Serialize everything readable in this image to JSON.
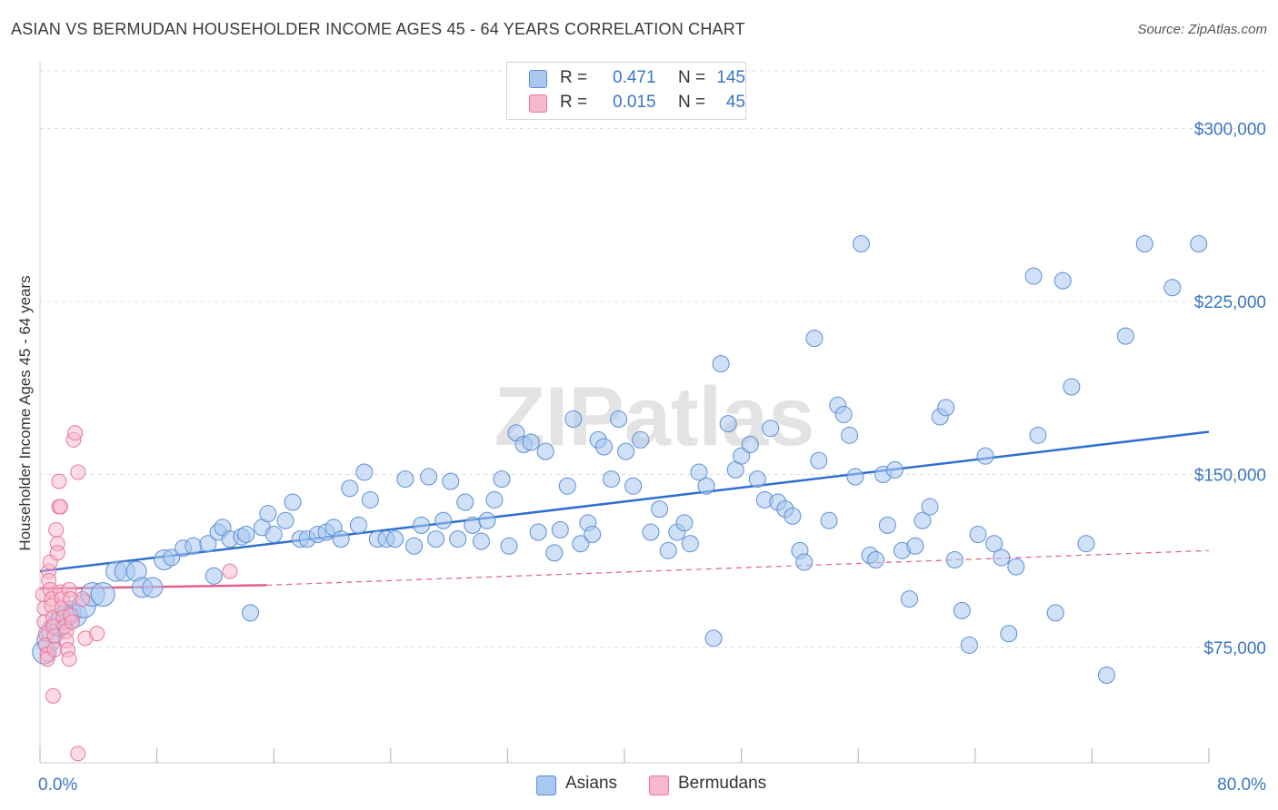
{
  "title": "ASIAN VS BERMUDAN HOUSEHOLDER INCOME AGES 45 - 64 YEARS CORRELATION CHART",
  "source": "Source: ZipAtlas.com",
  "watermark": "ZIPatlas",
  "legend": {
    "rows": [
      {
        "r_label": "R =",
        "r_value": "0.471",
        "n_label": "N =",
        "n_value": "145",
        "color": "#a9c8f0"
      },
      {
        "r_label": "R =",
        "r_value": "0.015",
        "n_label": "N =",
        "n_value": "45",
        "color": "#f7b8cc"
      }
    ]
  },
  "bottom_legend": [
    {
      "label": "Asians",
      "color": "#a9c8f0"
    },
    {
      "label": "Bermudans",
      "color": "#f7b8cc"
    }
  ],
  "colors": {
    "asians_fill": "#a9c8f0",
    "asians_stroke": "#5b8fd6",
    "asians_line": "#2f6fce",
    "bermudans_fill": "#f7b8cc",
    "bermudans_stroke": "#e8779c",
    "bermudans_line": "#e25d8b",
    "axis_text": "#3a76c4",
    "grid": "#dddddd"
  },
  "chart_data": {
    "type": "scatter",
    "title": "ASIAN VS BERMUDAN HOUSEHOLDER INCOME AGES 45 - 64 YEARS CORRELATION CHART",
    "xlabel": "",
    "ylabel": "Householder Income Ages 45 - 64 years",
    "xlim": [
      0,
      80
    ],
    "ylim": [
      25000,
      325000
    ],
    "x_tick_labels": [
      "0.0%",
      "80.0%"
    ],
    "y_ticks": [
      75000,
      150000,
      225000,
      300000
    ],
    "y_tick_labels": [
      "$75,000",
      "$150,000",
      "$225,000",
      "$300,000"
    ],
    "grid": true,
    "legend_position": "top-center",
    "series": [
      {
        "name": "Asians",
        "trend": {
          "x": [
            0,
            80
          ],
          "y": [
            108000,
            168500
          ]
        },
        "points": [
          [
            0.3,
            73000
          ],
          [
            0.6,
            78000
          ],
          [
            0.9,
            82000
          ],
          [
            1.3,
            85000
          ],
          [
            1.6,
            88000
          ],
          [
            2.0,
            90000
          ],
          [
            2.4,
            89000
          ],
          [
            3.0,
            93000
          ],
          [
            3.6,
            98000
          ],
          [
            4.3,
            98000
          ],
          [
            5.2,
            108000
          ],
          [
            5.8,
            108000
          ],
          [
            6.6,
            108000
          ],
          [
            7.0,
            101000
          ],
          [
            7.7,
            101000
          ],
          [
            8.5,
            113000
          ],
          [
            9.0,
            114000
          ],
          [
            9.8,
            118000
          ],
          [
            10.5,
            119000
          ],
          [
            11.5,
            120000
          ],
          [
            12.2,
            125000
          ],
          [
            11.9,
            106000
          ],
          [
            12.5,
            127000
          ],
          [
            13.0,
            122000
          ],
          [
            13.8,
            123000
          ],
          [
            14.1,
            124000
          ],
          [
            14.4,
            90000
          ],
          [
            15.2,
            127000
          ],
          [
            15.6,
            133000
          ],
          [
            16.0,
            124000
          ],
          [
            16.8,
            130000
          ],
          [
            17.3,
            138000
          ],
          [
            17.8,
            122000
          ],
          [
            18.3,
            122000
          ],
          [
            19.0,
            124000
          ],
          [
            19.6,
            125000
          ],
          [
            20.1,
            127000
          ],
          [
            20.6,
            122000
          ],
          [
            21.2,
            144000
          ],
          [
            21.8,
            128000
          ],
          [
            22.2,
            151000
          ],
          [
            22.6,
            139000
          ],
          [
            23.1,
            122000
          ],
          [
            23.7,
            122000
          ],
          [
            24.3,
            122000
          ],
          [
            25.0,
            148000
          ],
          [
            25.6,
            119000
          ],
          [
            26.1,
            128000
          ],
          [
            26.6,
            149000
          ],
          [
            27.1,
            122000
          ],
          [
            27.6,
            130000
          ],
          [
            28.1,
            147000
          ],
          [
            28.6,
            122000
          ],
          [
            29.1,
            138000
          ],
          [
            29.6,
            128000
          ],
          [
            30.2,
            121000
          ],
          [
            30.6,
            130000
          ],
          [
            31.1,
            139000
          ],
          [
            31.6,
            148000
          ],
          [
            32.1,
            119000
          ],
          [
            32.6,
            168000
          ],
          [
            33.1,
            163000
          ],
          [
            33.6,
            164000
          ],
          [
            34.1,
            125000
          ],
          [
            34.6,
            160000
          ],
          [
            35.2,
            116000
          ],
          [
            35.6,
            126000
          ],
          [
            36.1,
            145000
          ],
          [
            36.5,
            174000
          ],
          [
            37.0,
            120000
          ],
          [
            37.5,
            129000
          ],
          [
            37.8,
            124000
          ],
          [
            38.2,
            165000
          ],
          [
            38.6,
            162000
          ],
          [
            39.1,
            148000
          ],
          [
            39.6,
            174000
          ],
          [
            40.1,
            160000
          ],
          [
            40.6,
            145000
          ],
          [
            41.1,
            165000
          ],
          [
            41.8,
            125000
          ],
          [
            42.4,
            135000
          ],
          [
            43.0,
            117000
          ],
          [
            43.6,
            125000
          ],
          [
            44.1,
            129000
          ],
          [
            44.5,
            120000
          ],
          [
            45.1,
            151000
          ],
          [
            45.6,
            145000
          ],
          [
            46.1,
            79000
          ],
          [
            46.6,
            198000
          ],
          [
            47.1,
            172000
          ],
          [
            47.6,
            152000
          ],
          [
            48.0,
            158000
          ],
          [
            48.6,
            163000
          ],
          [
            49.1,
            148000
          ],
          [
            49.6,
            139000
          ],
          [
            50.0,
            170000
          ],
          [
            50.5,
            138000
          ],
          [
            51.0,
            135000
          ],
          [
            51.5,
            132000
          ],
          [
            52.0,
            117000
          ],
          [
            52.3,
            112000
          ],
          [
            53.0,
            209000
          ],
          [
            53.3,
            156000
          ],
          [
            54.0,
            130000
          ],
          [
            54.6,
            180000
          ],
          [
            55.0,
            176000
          ],
          [
            55.4,
            167000
          ],
          [
            55.8,
            149000
          ],
          [
            56.2,
            250000
          ],
          [
            56.8,
            115000
          ],
          [
            57.2,
            113000
          ],
          [
            57.7,
            150000
          ],
          [
            58.0,
            128000
          ],
          [
            58.5,
            152000
          ],
          [
            59.0,
            117000
          ],
          [
            59.5,
            96000
          ],
          [
            59.9,
            119000
          ],
          [
            60.4,
            130000
          ],
          [
            60.9,
            136000
          ],
          [
            61.6,
            175000
          ],
          [
            62.0,
            179000
          ],
          [
            62.6,
            113000
          ],
          [
            63.1,
            91000
          ],
          [
            63.6,
            76000
          ],
          [
            64.2,
            124000
          ],
          [
            64.7,
            158000
          ],
          [
            65.3,
            120000
          ],
          [
            65.8,
            114000
          ],
          [
            66.3,
            81000
          ],
          [
            66.8,
            110000
          ],
          [
            68.0,
            236000
          ],
          [
            68.3,
            167000
          ],
          [
            70.0,
            234000
          ],
          [
            69.5,
            90000
          ],
          [
            70.6,
            188000
          ],
          [
            71.6,
            120000
          ],
          [
            73.0,
            63000
          ],
          [
            74.3,
            210000
          ],
          [
            75.6,
            250000
          ],
          [
            77.5,
            231000
          ],
          [
            79.3,
            250000
          ]
        ]
      },
      {
        "name": "Bermudans",
        "trend": {
          "x": [
            0,
            15.5
          ],
          "y": [
            100500,
            102000
          ]
        },
        "trend_extension": {
          "x": [
            15.5,
            80
          ],
          "y": [
            102000,
            117000
          ]
        },
        "points": [
          [
            0.2,
            98000
          ],
          [
            0.3,
            92000
          ],
          [
            0.3,
            86000
          ],
          [
            0.4,
            81000
          ],
          [
            0.4,
            76000
          ],
          [
            0.5,
            72000
          ],
          [
            0.5,
            70000
          ],
          [
            0.6,
            108000
          ],
          [
            0.6,
            104000
          ],
          [
            0.7,
            112000
          ],
          [
            0.7,
            100000
          ],
          [
            0.8,
            96000
          ],
          [
            0.8,
            93000
          ],
          [
            0.9,
            88000
          ],
          [
            0.9,
            84000
          ],
          [
            1.0,
            80000
          ],
          [
            1.0,
            74000
          ],
          [
            1.1,
            126000
          ],
          [
            1.2,
            120000
          ],
          [
            1.2,
            116000
          ],
          [
            1.3,
            136000
          ],
          [
            1.3,
            147000
          ],
          [
            1.4,
            136000
          ],
          [
            1.4,
            99000
          ],
          [
            1.5,
            96000
          ],
          [
            1.5,
            92000
          ],
          [
            1.6,
            88000
          ],
          [
            1.7,
            84000
          ],
          [
            1.8,
            82000
          ],
          [
            1.8,
            78000
          ],
          [
            1.9,
            74000
          ],
          [
            2.0,
            70000
          ],
          [
            2.0,
            100000
          ],
          [
            2.1,
            96000
          ],
          [
            2.1,
            89000
          ],
          [
            2.2,
            86000
          ],
          [
            2.3,
            165000
          ],
          [
            2.4,
            168000
          ],
          [
            0.9,
            54000
          ],
          [
            2.6,
            151000
          ],
          [
            2.9,
            96000
          ],
          [
            3.1,
            79000
          ],
          [
            3.9,
            81000
          ],
          [
            13.0,
            108000
          ],
          [
            2.6,
            29000
          ]
        ]
      }
    ]
  }
}
